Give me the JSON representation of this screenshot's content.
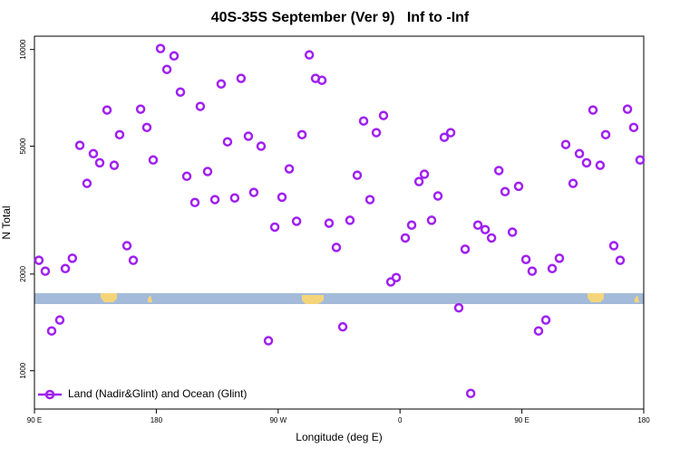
{
  "chart_data": {
    "type": "scatter",
    "title": "40S-35S September (Ver 9)   Inf to -Inf",
    "xlabel": "Longitude (deg E)",
    "ylabel": "N Total",
    "xlim": [
      90,
      540
    ],
    "xticks": [
      {
        "value": 90,
        "label": "90 E"
      },
      {
        "value": 180,
        "label": "180"
      },
      {
        "value": 270,
        "label": "90 W"
      },
      {
        "value": 360,
        "label": "0"
      },
      {
        "value": 450,
        "label": "90 E"
      },
      {
        "value": 540,
        "label": "180"
      }
    ],
    "ylim": [
      760,
      11000
    ],
    "yticks": [
      1000,
      2000,
      5000,
      10000
    ],
    "log_y": true,
    "legend": "lower left",
    "x": [
      93.3,
      98,
      102.7,
      108.7,
      112.8,
      118,
      123.5,
      128.8,
      133.5,
      138.2,
      143.6,
      148.9,
      152.9,
      158.3,
      163,
      168.4,
      173,
      177.7,
      183.1,
      187.8,
      193.1,
      197.8,
      202.5,
      208.5,
      212.5,
      217.9,
      223.3,
      227.9,
      232.6,
      237.9,
      242.6,
      248,
      252,
      257.4,
      262.8,
      267.5,
      272.8,
      278.2,
      283.6,
      287.6,
      293,
      297.6,
      302.3,
      307.6,
      313,
      317.7,
      323,
      328.4,
      333.1,
      337.8,
      342.5,
      347.8,
      353.2,
      357.2,
      363.9,
      368.6,
      374,
      378,
      383.3,
      388,
      392.7,
      397.4,
      403.4,
      408.1,
      412.2,
      417.5,
      422.9,
      427.6,
      433,
      437.6,
      443,
      447.6,
      453,
      457.6,
      462.3,
      467.7,
      472.4,
      477.7,
      482.4,
      487.8,
      492.5,
      497.8,
      502.5,
      507.8,
      511.9,
      517.9,
      522.6,
      528,
      532.6,
      537.3
    ],
    "series": [
      {
        "name": "Land (Nadir&Glint) and Ocean (Glint)",
        "color": "#a020f0",
        "values": [
          2207,
          2042,
          1330,
          1438,
          2080,
          2240,
          5030,
          3830,
          4740,
          4440,
          6480,
          4360,
          5430,
          2450,
          2207,
          6520,
          5720,
          4530,
          10070,
          8670,
          9550,
          7370,
          4030,
          3340,
          6650,
          4170,
          3410,
          7810,
          5160,
          3450,
          8130,
          5370,
          3590,
          5000,
          1240,
          2800,
          3470,
          4250,
          2920,
          5430,
          9620,
          8130,
          8020,
          2880,
          2420,
          1370,
          2940,
          4060,
          5990,
          3410,
          5510,
          6230,
          1890,
          1950,
          2590,
          2840,
          3880,
          4090,
          2940,
          3500,
          5330,
          5510,
          1570,
          2390,
          850,
          2840,
          2750,
          2590,
          4200,
          3610,
          2700,
          3750,
          2220,
          2042,
          1330,
          1438,
          2080,
          2240,
          5060,
          3830,
          4740,
          4440,
          6480,
          4360,
          5430,
          2450,
          2207,
          6520,
          5720,
          4530
        ]
      }
    ]
  }
}
